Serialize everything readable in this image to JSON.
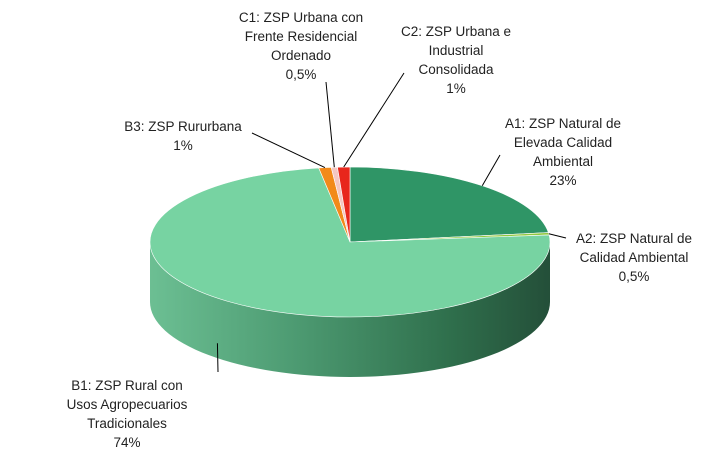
{
  "chart_data": {
    "type": "pie",
    "style": "3d",
    "title": "",
    "slices": [
      {
        "id": "a1",
        "lines": [
          "A1: ZSP Natural de",
          "Elevada Calidad",
          "Ambiental"
        ],
        "pct_label": "23%",
        "value": 23,
        "color": "#2f9566"
      },
      {
        "id": "a2",
        "lines": [
          "A2: ZSP Natural de",
          "Calidad Ambiental"
        ],
        "pct_label": "0,5%",
        "value": 0.5,
        "color": "#92c83e"
      },
      {
        "id": "b1",
        "lines": [
          "B1: ZSP Rural con",
          "Usos Agropecuarios",
          "Tradicionales"
        ],
        "pct_label": "74%",
        "value": 74,
        "color": "#77d3a2"
      },
      {
        "id": "b3",
        "lines": [
          "B3: ZSP Rururbana"
        ],
        "pct_label": "1%",
        "value": 1,
        "color": "#f28a1a"
      },
      {
        "id": "c1",
        "lines": [
          "C1: ZSP Urbana con",
          "Frente Residencial",
          "Ordenado"
        ],
        "pct_label": "0,5%",
        "value": 0.5,
        "color": "#f4c7c2"
      },
      {
        "id": "c2",
        "lines": [
          "C2: ZSP Urbana e",
          "Industrial",
          "Consolidada"
        ],
        "pct_label": "1%",
        "value": 1,
        "color": "#e8261c"
      }
    ]
  }
}
